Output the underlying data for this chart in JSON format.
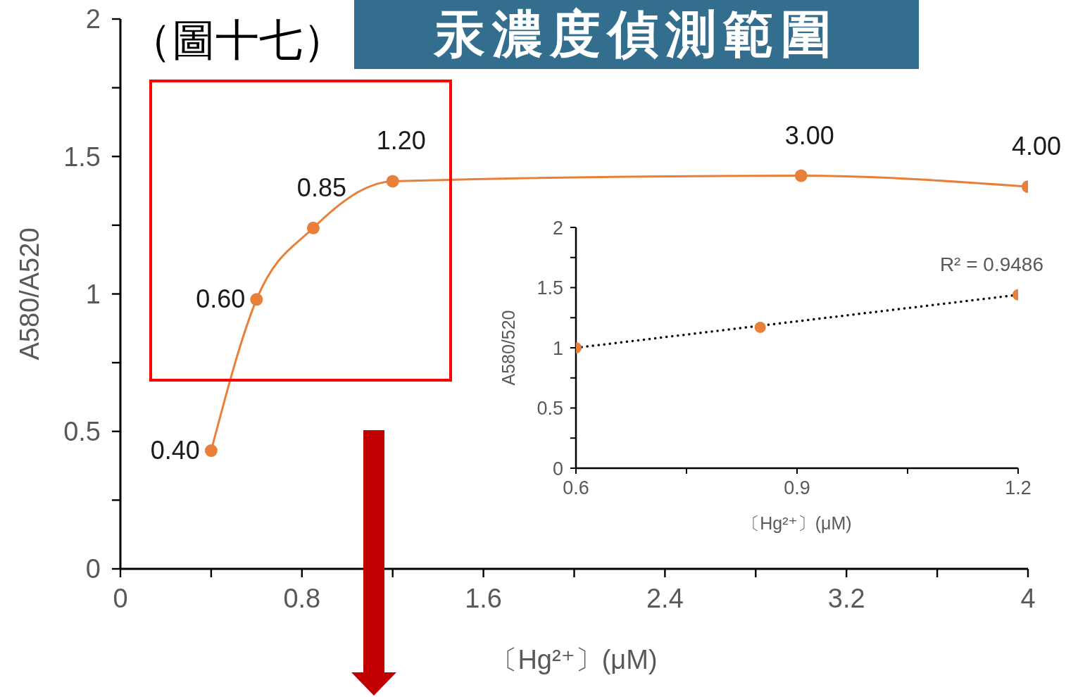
{
  "chart_data": [
    {
      "type": "line",
      "title": "汞濃度偵測範圍",
      "subtitle": "（圖十七）",
      "xlabel": "〔Hg²⁺〕(μM)",
      "ylabel": "A580/A520",
      "x": [
        0.4,
        0.6,
        0.85,
        1.2,
        3.0,
        4.0
      ],
      "series": [
        {
          "color": "#e8803a",
          "values": [
            0.43,
            0.98,
            1.24,
            1.41,
            1.43,
            1.39
          ]
        }
      ],
      "annotations": [
        {
          "text": "0.40",
          "x": 0.4,
          "y": 0.43
        },
        {
          "text": "0.60",
          "x": 0.6,
          "y": 0.98
        },
        {
          "text": "0.85",
          "x": 0.85,
          "y": 1.24
        },
        {
          "text": "1.20",
          "x": 1.2,
          "y": 1.41
        },
        {
          "text": "3.00",
          "x": 3.0,
          "y": 1.43
        },
        {
          "text": "4.00",
          "x": 4.0,
          "y": 1.39
        }
      ],
      "xlim": [
        0,
        4
      ],
      "xticks": [
        0,
        {
          "value": 0.4,
          "label": null
        },
        0.8,
        {
          "value": 1.2,
          "label": null
        },
        1.6,
        {
          "value": 2,
          "label": null
        },
        2.4,
        {
          "value": 2.8,
          "label": null
        },
        3.2,
        {
          "value": 3.6,
          "label": null
        },
        4
      ],
      "ylim": [
        0,
        2
      ],
      "yticks": [
        0,
        {
          "value": 0.25,
          "label": null
        },
        0.5,
        {
          "value": 0.75,
          "label": null
        },
        1,
        {
          "value": 1.25,
          "label": null
        },
        1.5,
        {
          "value": 1.75,
          "label": null
        },
        2
      ],
      "marker": "circle"
    },
    {
      "type": "scatter",
      "xlabel": "〔Hg²⁺〕(μM)",
      "ylabel": "A580/520",
      "annotations": [
        "R² = 0.9486"
      ],
      "series": [
        {
          "color": "#e8803a",
          "x": [
            0.6,
            0.85,
            1.2
          ],
          "values": [
            1.0,
            1.17,
            1.44
          ]
        },
        {
          "type": "line",
          "color": "#000000",
          "x": [
            0.6,
            1.2
          ],
          "values": [
            1.0,
            1.44
          ],
          "line_style": "dotted",
          "marker": "none"
        }
      ],
      "xlim": [
        0.6,
        1.2
      ],
      "xticks": [
        0.6,
        {
          "value": 0.75,
          "label": null
        },
        0.9,
        {
          "value": 1.05,
          "label": null
        },
        1.2
      ],
      "ylim": [
        0,
        2
      ],
      "yticks": [
        0,
        {
          "value": 0.25,
          "label": null
        },
        0.5,
        {
          "value": 0.75,
          "label": null
        },
        1,
        {
          "value": 1.25,
          "label": null
        },
        1.5,
        {
          "value": 1.75,
          "label": null
        },
        2
      ],
      "marker": "circle"
    }
  ]
}
